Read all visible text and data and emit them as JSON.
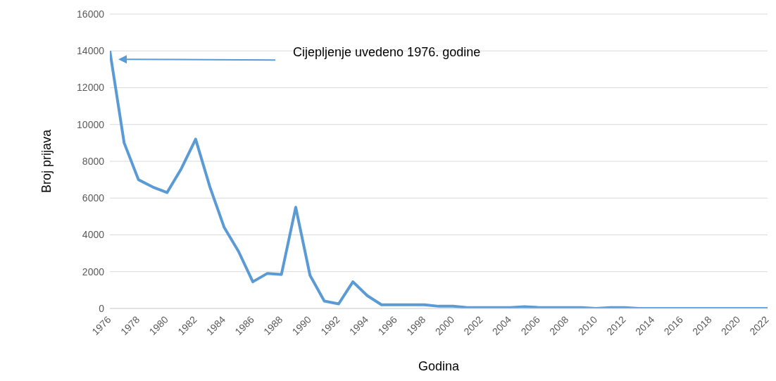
{
  "chart_data": {
    "type": "line",
    "xlabel": "Godina",
    "ylabel": "Broj prijava",
    "annotations": [
      "Cijepljenje uvedeno 1976. godine"
    ],
    "x": [
      1976,
      1977,
      1978,
      1979,
      1980,
      1981,
      1982,
      1983,
      1984,
      1985,
      1986,
      1987,
      1988,
      1989,
      1990,
      1991,
      1992,
      1993,
      1994,
      1995,
      1996,
      1997,
      1998,
      1999,
      2000,
      2001,
      2002,
      2003,
      2004,
      2005,
      2006,
      2007,
      2008,
      2009,
      2010,
      2011,
      2012,
      2013,
      2014,
      2015,
      2016,
      2017,
      2018,
      2019,
      2020,
      2021,
      2022
    ],
    "series": [
      {
        "color": "#5b9bd5",
        "values": [
          14000,
          9000,
          7000,
          6600,
          6300,
          7600,
          9200,
          6600,
          4400,
          3100,
          1450,
          1900,
          1850,
          5500,
          1800,
          400,
          250,
          1450,
          700,
          200,
          200,
          200,
          200,
          120,
          120,
          50,
          50,
          50,
          50,
          100,
          50,
          50,
          50,
          50,
          0,
          50,
          50,
          0,
          0,
          0,
          0,
          0,
          0,
          0,
          0,
          0,
          0
        ]
      }
    ],
    "xlim": [
      1976,
      2022
    ],
    "xticks": [
      1976,
      1978,
      1980,
      1982,
      1984,
      1986,
      1988,
      1990,
      1992,
      1994,
      1996,
      1998,
      2000,
      2002,
      2004,
      2006,
      2008,
      2010,
      2012,
      2014,
      2016,
      2018,
      2020,
      2022
    ],
    "ylim": [
      0,
      16000
    ],
    "yticks": [
      0,
      2000,
      4000,
      6000,
      8000,
      10000,
      12000,
      14000,
      16000
    ],
    "grid": "y",
    "legend": false,
    "marker": "none",
    "line_style": "solid"
  }
}
